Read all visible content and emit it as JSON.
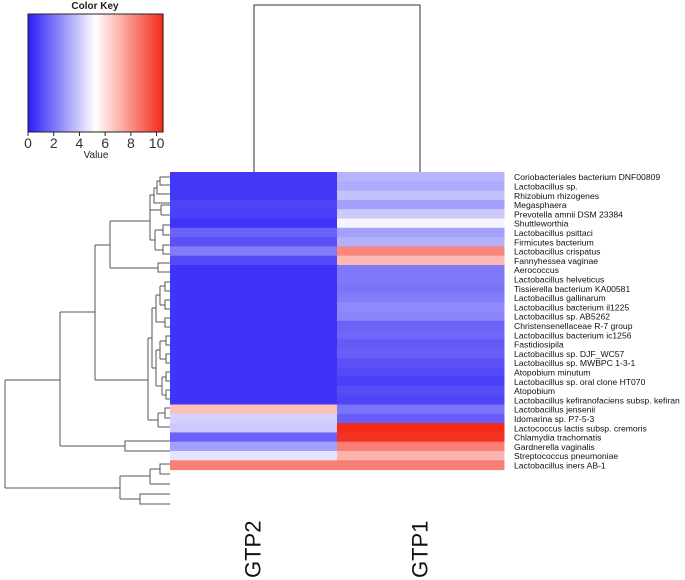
{
  "chart_data": {
    "type": "heatmap",
    "color_key": {
      "title": "Color Key",
      "xlabel": "Value",
      "range": [
        0,
        10.5
      ],
      "ticks": [
        0,
        2,
        4,
        6,
        8,
        10
      ],
      "colors": {
        "low": "#2a1ef5",
        "mid": "#ffffff",
        "high": "#f52a18"
      }
    },
    "columns": [
      "GTP2",
      "GTP1"
    ],
    "rows": [
      {
        "label": "Coriobacteriales bacterium DNF00809",
        "values": [
          0.6,
          3.5
        ]
      },
      {
        "label": "Lactobacillus sp.",
        "values": [
          0.6,
          3.3
        ]
      },
      {
        "label": "Rhizobium rhizogenes",
        "values": [
          0.6,
          3.8
        ]
      },
      {
        "label": "Megasphaera",
        "values": [
          0.9,
          3.0
        ]
      },
      {
        "label": "Prevotella amnii DSM 23384",
        "values": [
          0.8,
          4.0
        ]
      },
      {
        "label": "Shuttleworthia",
        "values": [
          0.5,
          5.0
        ]
      },
      {
        "label": "Lactobacillus psittaci",
        "values": [
          1.6,
          3.0
        ]
      },
      {
        "label": "Firmicutes bacterium",
        "values": [
          1.2,
          3.4
        ]
      },
      {
        "label": "Lactobacillus crispatus",
        "values": [
          2.2,
          8.2
        ]
      },
      {
        "label": "Fannyhessea vaginae",
        "values": [
          1.0,
          7.0
        ]
      },
      {
        "label": "Aerococcus",
        "values": [
          0.5,
          2.1
        ]
      },
      {
        "label": "Lactobacillus helveticus",
        "values": [
          0.5,
          2.1
        ]
      },
      {
        "label": "Tissierella bacterium KA00581",
        "values": [
          0.5,
          2.0
        ]
      },
      {
        "label": "Lactobacillus gallinarum",
        "values": [
          0.5,
          2.2
        ]
      },
      {
        "label": "Lactobacillus bacterium il1225",
        "values": [
          0.5,
          2.5
        ]
      },
      {
        "label": "Lactobacillus sp. AB5262",
        "values": [
          0.5,
          2.4
        ]
      },
      {
        "label": "Christensenellaceae R-7 group",
        "values": [
          0.5,
          1.6
        ]
      },
      {
        "label": "Lactobacillus bacterium ic1256",
        "values": [
          0.5,
          1.7
        ]
      },
      {
        "label": "Fastidiosipila",
        "values": [
          0.5,
          1.4
        ]
      },
      {
        "label": "Lactobacillus sp. DJF_WC57",
        "values": [
          0.5,
          1.5
        ]
      },
      {
        "label": "Lactobacillus sp. MWBPC 1-3-1",
        "values": [
          0.5,
          1.2
        ]
      },
      {
        "label": "Atopobium minutum",
        "values": [
          0.5,
          1.0
        ]
      },
      {
        "label": "Lactobacillus sp. oral clone HT070",
        "values": [
          0.5,
          0.8
        ]
      },
      {
        "label": "Atopobium",
        "values": [
          0.5,
          1.1
        ]
      },
      {
        "label": "Lactobacillus kefiranofaciens subsp. kefiran",
        "values": [
          0.5,
          0.9
        ]
      },
      {
        "label": "Lactobacillus jensenii",
        "values": [
          6.8,
          2.0
        ]
      },
      {
        "label": "Idomarina sp. P7-5-3",
        "values": [
          4.2,
          1.5
        ]
      },
      {
        "label": "Lactococcus lactis subsp. cremoris",
        "values": [
          4.0,
          10.5
        ]
      },
      {
        "label": "Chlamydia trachomatis",
        "values": [
          1.6,
          10.3
        ]
      },
      {
        "label": "Gardnerella vaginalis",
        "values": [
          3.0,
          8.4
        ]
      },
      {
        "label": "Streptococcus pneumoniae",
        "values": [
          4.6,
          7.1
        ]
      },
      {
        "label": "Lactobacillus iners AB-1",
        "values": [
          8.4,
          8.4
        ]
      }
    ]
  }
}
